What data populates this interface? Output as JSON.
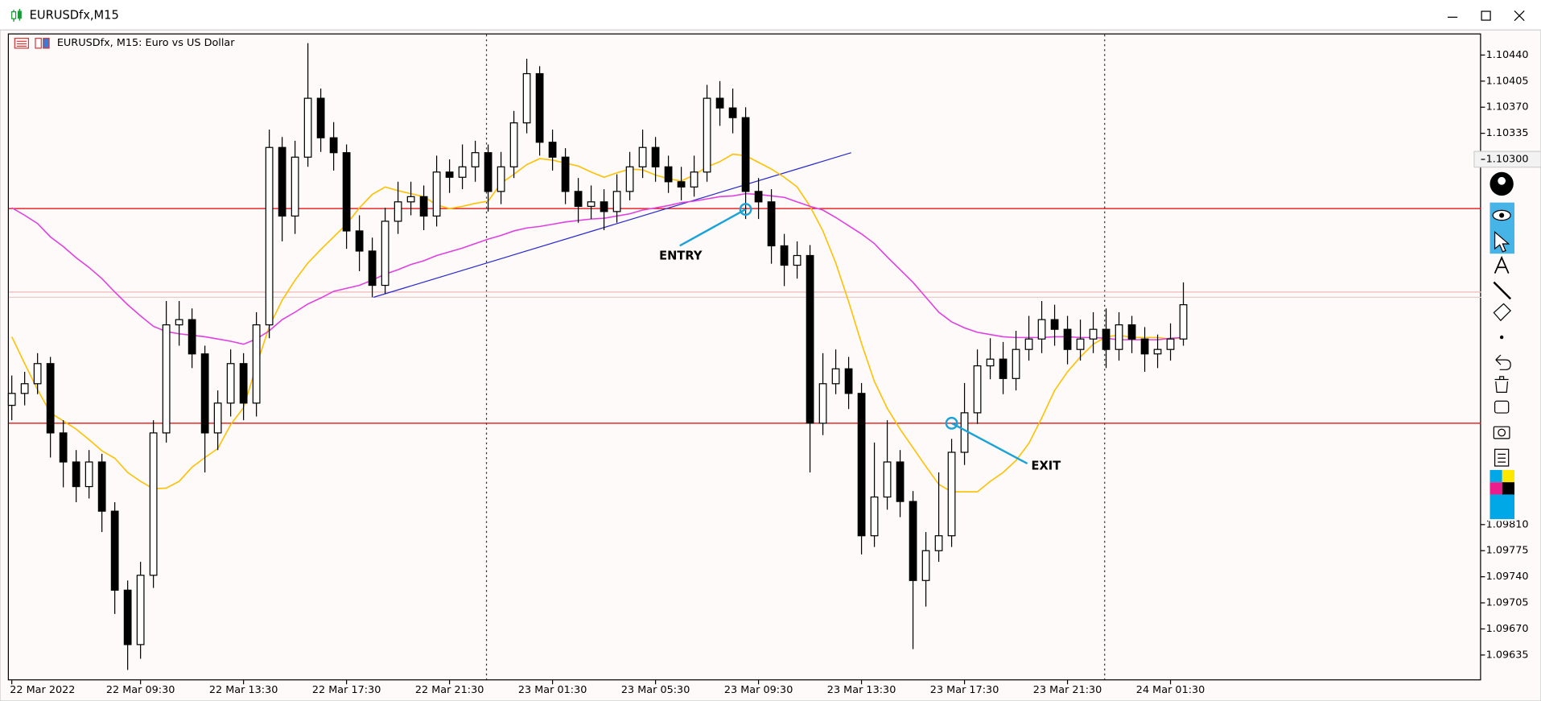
{
  "window": {
    "title": "EURUSDfx,M15"
  },
  "chart_data": {
    "type": "candlestick",
    "title": "EURUSDfx, M15:  Euro vs US Dollar",
    "categories": [
      "22 Mar 2022",
      null,
      null,
      null,
      null,
      null,
      null,
      null,
      null,
      null,
      "22 Mar 09:30",
      null,
      null,
      null,
      null,
      null,
      null,
      null,
      "22 Mar 13:30",
      null,
      null,
      null,
      null,
      null,
      null,
      null,
      "22 Mar 17:30",
      null,
      null,
      null,
      null,
      null,
      null,
      null,
      "22 Mar 21:30",
      null,
      null,
      null,
      null,
      null,
      null,
      null,
      "23 Mar 01:30",
      null,
      null,
      null,
      null,
      null,
      null,
      null,
      "23 Mar 05:30",
      null,
      null,
      null,
      null,
      null,
      null,
      null,
      "23 Mar 09:30",
      null,
      null,
      null,
      null,
      null,
      null,
      null,
      "23 Mar 13:30",
      null,
      null,
      null,
      null,
      null,
      null,
      null,
      "23 Mar 17:30",
      null,
      null,
      null,
      null,
      null,
      null,
      null,
      "23 Mar 21:30",
      null,
      null,
      null,
      null,
      null,
      null,
      null,
      "24 Mar 01:30",
      null
    ],
    "open": [
      1.0997,
      1.09986,
      1.09999,
      1.10026,
      1.09933,
      1.09894,
      1.09861,
      1.09894,
      1.09828,
      1.09722,
      1.09649,
      1.09742,
      1.09933,
      1.10078,
      1.10085,
      1.10039,
      1.09933,
      1.09973,
      1.10026,
      1.09973,
      1.10078,
      1.10316,
      1.10224,
      1.10303,
      1.10382,
      1.10329,
      1.10309,
      1.10204,
      1.10177,
      1.10131,
      1.10217,
      1.10243,
      1.1025,
      1.10224,
      1.10283,
      1.10276,
      1.1029,
      1.10309,
      1.10257,
      1.1029,
      1.10349,
      1.10415,
      1.10323,
      1.10303,
      1.10257,
      1.10237,
      1.10243,
      1.1023,
      1.10257,
      1.1029,
      1.10316,
      1.1029,
      1.1027,
      1.10263,
      1.10283,
      1.10382,
      1.10369,
      1.10356,
      1.10257,
      1.10243,
      1.10184,
      1.10158,
      1.10171,
      1.09946,
      1.09999,
      1.10019,
      1.09986,
      1.09795,
      1.09847,
      1.09894,
      1.09841,
      1.09735,
      1.09775,
      1.09795,
      1.09907,
      1.0996,
      1.10023,
      1.10032,
      1.10006,
      1.10045,
      1.10059,
      1.10085,
      1.10072,
      1.10045,
      1.10059,
      1.10072,
      1.10045,
      1.10078,
      1.10059,
      1.10039,
      1.10045,
      1.10059
    ],
    "high": [
      1.1001,
      1.10015,
      1.1004,
      1.10035,
      1.0995,
      1.0991,
      1.0991,
      1.09905,
      1.0984,
      1.09735,
      1.0976,
      1.0995,
      1.1011,
      1.1011,
      1.101,
      1.1005,
      1.0999,
      1.10045,
      1.1004,
      1.10095,
      1.1034,
      1.1033,
      1.10325,
      1.10456,
      1.10395,
      1.1035,
      1.1032,
      1.10225,
      1.10195,
      1.10235,
      1.1027,
      1.1027,
      1.10265,
      1.10305,
      1.103,
      1.1032,
      1.10325,
      1.1032,
      1.1031,
      1.10365,
      1.10435,
      1.10425,
      1.1034,
      1.10315,
      1.10275,
      1.10265,
      1.1026,
      1.1028,
      1.1031,
      1.1034,
      1.1033,
      1.10305,
      1.1029,
      1.10305,
      1.104,
      1.10405,
      1.10395,
      1.1037,
      1.10275,
      1.1026,
      1.102,
      1.1019,
      1.10185,
      1.1004,
      1.10045,
      1.10035,
      1.1,
      1.0992,
      1.0995,
      1.0991,
      1.09855,
      1.098,
      1.0988,
      1.09925,
      1.1,
      1.10045,
      1.1006,
      1.10055,
      1.1007,
      1.1009,
      1.1011,
      1.10105,
      1.1009,
      1.10085,
      1.10095,
      1.101,
      1.10095,
      1.1009,
      1.10075,
      1.10065,
      1.1008,
      1.10135
    ],
    "low": [
      1.0995,
      1.0997,
      1.09985,
      1.099,
      1.0986,
      1.0984,
      1.09845,
      1.098,
      1.0969,
      1.09615,
      1.0963,
      1.09725,
      1.0992,
      1.1005,
      1.1002,
      1.0988,
      1.0991,
      1.09955,
      1.0995,
      1.09955,
      1.1006,
      1.1019,
      1.102,
      1.1029,
      1.1031,
      1.10285,
      1.1018,
      1.1015,
      1.10115,
      1.1012,
      1.102,
      1.10225,
      1.10205,
      1.1021,
      1.10255,
      1.1026,
      1.1027,
      1.1023,
      1.1024,
      1.10275,
      1.10335,
      1.10305,
      1.10285,
      1.1024,
      1.10215,
      1.1022,
      1.10205,
      1.10215,
      1.10245,
      1.10275,
      1.1027,
      1.10255,
      1.10245,
      1.1025,
      1.1027,
      1.10345,
      1.10335,
      1.1022,
      1.1022,
      1.1016,
      1.1013,
      1.1014,
      1.0988,
      1.0993,
      1.09985,
      1.09965,
      1.0977,
      1.0978,
      1.0983,
      1.0982,
      1.09643,
      1.097,
      1.0976,
      1.0978,
      1.0989,
      1.09945,
      1.10005,
      1.09985,
      1.0999,
      1.1003,
      1.1004,
      1.1005,
      1.10025,
      1.1003,
      1.1004,
      1.1002,
      1.1003,
      1.1004,
      1.10015,
      1.1002,
      1.1003,
      1.1005
    ],
    "close": [
      1.09986,
      1.09999,
      1.10026,
      1.09933,
      1.09894,
      1.09861,
      1.09894,
      1.09828,
      1.09722,
      1.09649,
      1.09742,
      1.09933,
      1.10078,
      1.10085,
      1.10039,
      1.09933,
      1.09973,
      1.10026,
      1.09973,
      1.10078,
      1.10316,
      1.10224,
      1.10303,
      1.10382,
      1.10329,
      1.10309,
      1.10204,
      1.10177,
      1.10131,
      1.10217,
      1.10243,
      1.1025,
      1.10224,
      1.10283,
      1.10276,
      1.1029,
      1.10309,
      1.10257,
      1.1029,
      1.10349,
      1.10415,
      1.10323,
      1.10303,
      1.10257,
      1.10237,
      1.10243,
      1.1023,
      1.10257,
      1.1029,
      1.10316,
      1.1029,
      1.1027,
      1.10263,
      1.10283,
      1.10382,
      1.10369,
      1.10356,
      1.10257,
      1.10243,
      1.10184,
      1.10158,
      1.10171,
      1.09946,
      1.09999,
      1.10019,
      1.09986,
      1.09795,
      1.09847,
      1.09894,
      1.09841,
      1.09735,
      1.09775,
      1.09795,
      1.09907,
      1.0996,
      1.10023,
      1.10032,
      1.10006,
      1.10045,
      1.10059,
      1.10085,
      1.10072,
      1.10045,
      1.10059,
      1.10072,
      1.10045,
      1.10078,
      1.10059,
      1.10039,
      1.10045,
      1.10059,
      1.10105
    ],
    "up_color": "#ffffff",
    "down_color": "#000000",
    "lines": [
      {
        "color": "#ffc000",
        "values": [
          1.10062,
          1.10026,
          1.09991,
          1.0996,
          1.09949,
          1.09938,
          1.09924,
          1.09909,
          1.09899,
          1.0988,
          1.09868,
          1.09858,
          1.09859,
          1.09868,
          1.09887,
          1.099,
          1.09912,
          1.09944,
          1.09967,
          1.10023,
          1.10076,
          1.10111,
          1.10138,
          1.10161,
          1.10179,
          1.10196,
          1.10213,
          1.10235,
          1.10253,
          1.10263,
          1.10258,
          1.10254,
          1.1025,
          1.10239,
          1.10234,
          1.10237,
          1.10241,
          1.10244,
          1.10268,
          1.1028,
          1.10293,
          1.10301,
          1.10299,
          1.10295,
          1.10291,
          1.10283,
          1.10276,
          1.10282,
          1.10287,
          1.10286,
          1.10279,
          1.10274,
          1.10271,
          1.10279,
          1.1029,
          1.10297,
          1.10307,
          1.10305,
          1.10296,
          1.10287,
          1.10276,
          1.10263,
          1.10237,
          1.10204,
          1.10161,
          1.10109,
          1.10053,
          1.10002,
          1.09966,
          1.09938,
          1.09913,
          1.09888,
          1.09864,
          1.09854,
          1.09854,
          1.09854,
          1.09868,
          1.0988,
          1.09896,
          1.09919,
          1.09953,
          1.0999,
          1.10015,
          1.10035,
          1.10052,
          1.10062,
          1.10064,
          1.10061,
          1.10061,
          1.10061,
          1.10059,
          1.10061
        ]
      },
      {
        "color": "#e040e0",
        "values": [
          1.10235,
          1.10225,
          1.10214,
          1.10196,
          1.10183,
          1.10168,
          1.10155,
          1.1014,
          1.10122,
          1.10105,
          1.1009,
          1.10076,
          1.10069,
          1.10066,
          1.10064,
          1.10062,
          1.10059,
          1.10056,
          1.10052,
          1.10059,
          1.1007,
          1.10085,
          1.10095,
          1.10106,
          1.10114,
          1.10123,
          1.10127,
          1.10131,
          1.10138,
          1.10146,
          1.10152,
          1.10159,
          1.10164,
          1.10171,
          1.10176,
          1.10181,
          1.10187,
          1.10193,
          1.10198,
          1.10204,
          1.10208,
          1.1021,
          1.10213,
          1.10216,
          1.10218,
          1.1022,
          1.10221,
          1.10224,
          1.10227,
          1.10232,
          1.10235,
          1.10238,
          1.10242,
          1.10244,
          1.10247,
          1.1025,
          1.10251,
          1.10254,
          1.10253,
          1.10251,
          1.10249,
          1.10243,
          1.10237,
          1.10232,
          1.10222,
          1.10211,
          1.102,
          1.10187,
          1.10169,
          1.10152,
          1.10135,
          1.10115,
          1.10095,
          1.10082,
          1.10074,
          1.10068,
          1.10065,
          1.10062,
          1.10061,
          1.10061,
          1.10061,
          1.10062,
          1.10062,
          1.10061,
          1.10061,
          1.1006,
          1.10058,
          1.10058,
          1.10058,
          1.10058,
          1.1006,
          1.10061
        ]
      }
    ],
    "hlines": [
      {
        "value": 1.10234,
        "color": "#e00000"
      },
      {
        "value": 1.09946,
        "color": "#e00000"
      },
      {
        "value": 1.10122,
        "color": "#f2b8b8"
      },
      {
        "value": 1.10115,
        "color": "#e6cccc"
      }
    ],
    "trendline": {
      "x": [
        28.1,
        65.2
      ],
      "y": [
        1.10115,
        1.10309
      ],
      "color": "#2a2ad0"
    },
    "annotations": [
      {
        "text": "ENTRY",
        "x": 57,
        "y": 1.10233
      },
      {
        "text": "EXIT",
        "x": 73,
        "y": 1.09946
      }
    ],
    "annotation_color": "#1aa3d9",
    "ylim": [
      1.09601,
      1.10469
    ],
    "yticks": [
      {
        "value": 1.1044,
        "label": "1.10440"
      },
      {
        "value": 1.10405,
        "label": "1.10405"
      },
      {
        "value": 1.1037,
        "label": "1.10370"
      },
      {
        "value": 1.10335,
        "label": "1.10335"
      },
      {
        "value": 1.103,
        "label": "1.10300"
      },
      {
        "value": 1.0981,
        "label": "1.09810"
      },
      {
        "value": 1.09775,
        "label": "1.09775"
      },
      {
        "value": 1.0974,
        "label": "1.09740"
      },
      {
        "value": 1.09705,
        "label": "1.09705"
      },
      {
        "value": 1.0967,
        "label": "1.09670"
      },
      {
        "value": 1.09635,
        "label": "1.09635"
      }
    ]
  }
}
